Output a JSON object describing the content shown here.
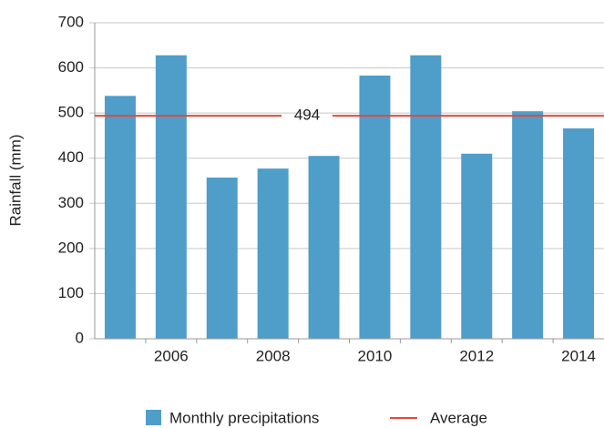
{
  "chart_data": {
    "type": "bar",
    "y_label": "Rainfall (mm)",
    "categories": [
      null,
      "2006",
      null,
      "2008",
      null,
      "2010",
      null,
      "2012",
      null,
      "2014"
    ],
    "series": [
      {
        "name": "Monthly precipitations",
        "color": "#4e9ec9",
        "values": [
          538,
          628,
          357,
          377,
          405,
          583,
          628,
          410,
          504,
          466
        ]
      }
    ],
    "average": {
      "name": "Average",
      "value": 494,
      "color": "#e8473a"
    },
    "ylim": [
      0,
      700
    ],
    "yticks": [
      0,
      100,
      200,
      300,
      400,
      500,
      600,
      700
    ],
    "grid": true
  }
}
